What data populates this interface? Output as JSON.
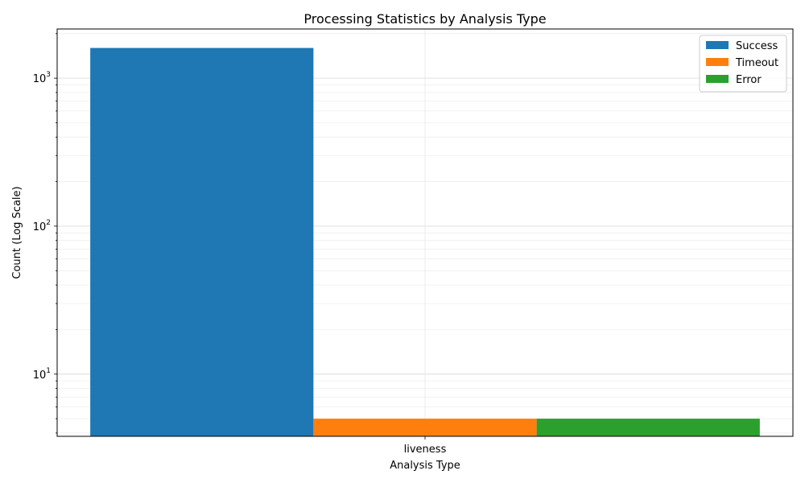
{
  "chart_data": {
    "type": "bar",
    "title": "Processing Statistics by Analysis Type",
    "xlabel": "Analysis Type",
    "ylabel": "Count (Log Scale)",
    "yscale": "log",
    "ylim": [
      3.8,
      2150
    ],
    "categories": [
      "liveness"
    ],
    "series": [
      {
        "name": "Success",
        "values": [
          1600
        ],
        "color": "#1f77b4"
      },
      {
        "name": "Timeout",
        "values": [
          5
        ],
        "color": "#ff7f0e"
      },
      {
        "name": "Error",
        "values": [
          5
        ],
        "color": "#2ca02c"
      }
    ],
    "yticks": [
      {
        "base": "10",
        "exp": "1",
        "value": 10
      },
      {
        "base": "10",
        "exp": "2",
        "value": 100
      },
      {
        "base": "10",
        "exp": "3",
        "value": 1000
      }
    ],
    "grid": true,
    "legend_position": "top-right"
  }
}
